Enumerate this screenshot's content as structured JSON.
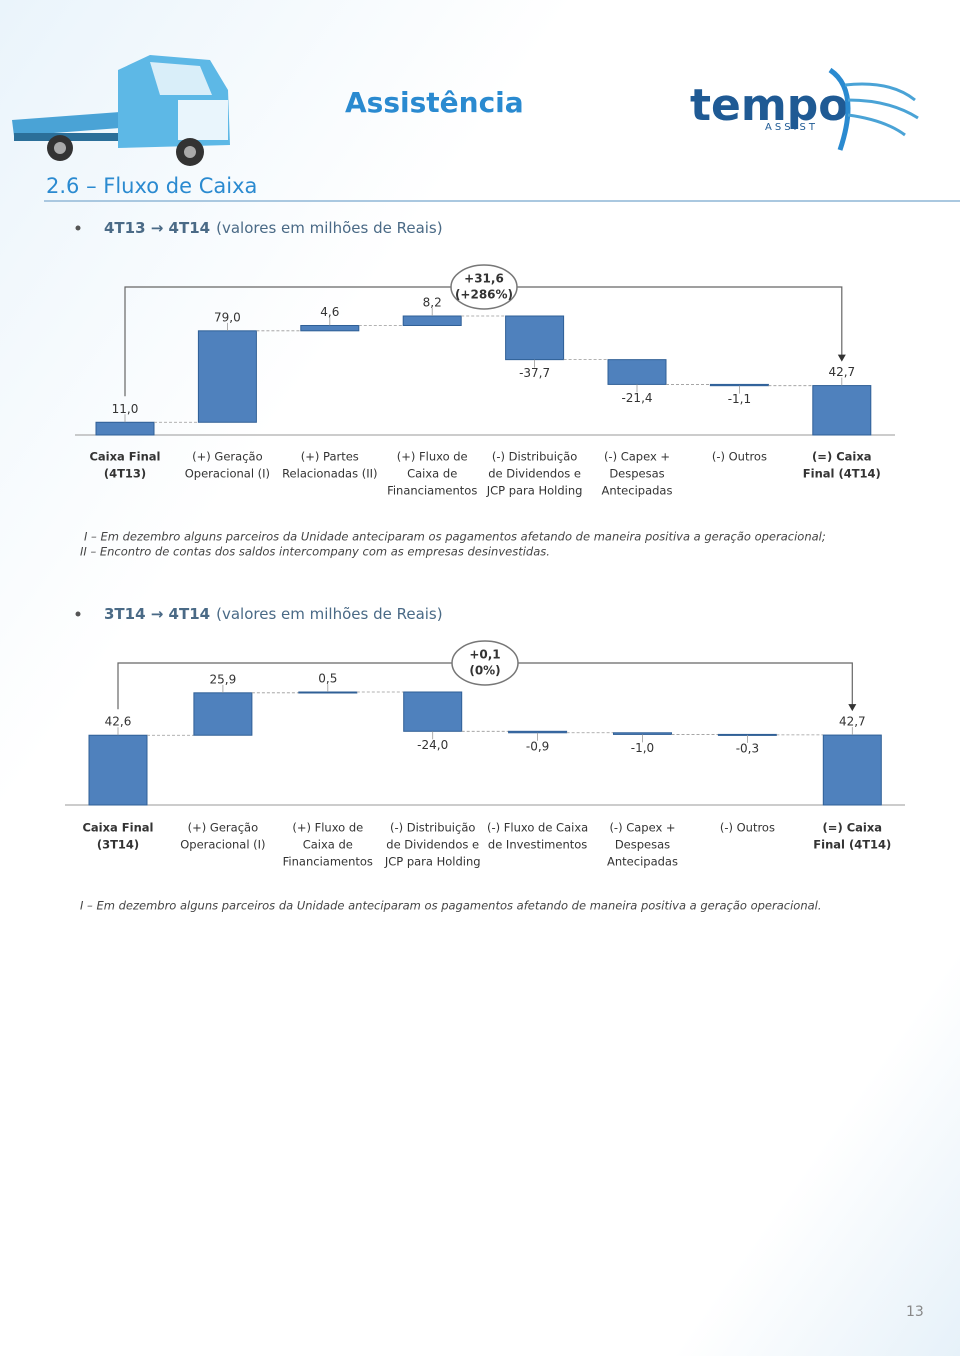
{
  "header": {
    "title": "Assistência",
    "logo": "tempo",
    "logo_sub": "ASSIST"
  },
  "section": {
    "title": "2.6 – Fluxo de Caixa"
  },
  "bullets": [
    {
      "bold": "4T13 → 4T14",
      "text": "(valores em milhões de Reais)"
    },
    {
      "bold": "3T14 → 4T14",
      "text": "(valores em milhões de Reais)"
    }
  ],
  "chart_data": [
    {
      "type": "waterfall",
      "color": "#4f81bd",
      "categories": [
        [
          "Caixa Final",
          "(4T13)"
        ],
        [
          "(+) Geração",
          "Operacional (I)"
        ],
        [
          "(+) Partes",
          "Relacionadas (II)"
        ],
        [
          "(+) Fluxo de",
          "Caixa de",
          "Financiamentos"
        ],
        [
          "(-) Distribuição",
          "de Dividendos e",
          "JCP para Holding"
        ],
        [
          "(-) Capex +",
          "Despesas",
          "Antecipadas"
        ],
        [
          "(-) Outros"
        ],
        [
          "(=) Caixa",
          "Final (4T14)"
        ]
      ],
      "values": [
        11.0,
        79.0,
        4.6,
        8.2,
        -37.7,
        -21.4,
        -1.1,
        42.7
      ],
      "value_labels": [
        "11,0",
        "79,0",
        "4,6",
        "8,2",
        "-37,7",
        "-21,4",
        "-1,1",
        "42,7"
      ],
      "annotation": [
        "+31,6",
        "(+286%)"
      ]
    },
    {
      "type": "waterfall",
      "color": "#4f81bd",
      "categories": [
        [
          "Caixa Final",
          "(3T14)"
        ],
        [
          "(+) Geração",
          "Operacional (I)"
        ],
        [
          "(+) Fluxo de",
          "Caixa de",
          "Financiamentos"
        ],
        [
          "(-) Distribuição",
          "de Dividendos e",
          "JCP para Holding"
        ],
        [
          "(-) Fluxo de Caixa",
          "de Investimentos"
        ],
        [
          "(-) Capex +",
          "Despesas",
          "Antecipadas"
        ],
        [
          "(-) Outros"
        ],
        [
          "(=) Caixa",
          "Final (4T14)"
        ]
      ],
      "values": [
        42.6,
        25.9,
        0.5,
        -24.0,
        -0.9,
        -1.0,
        -0.3,
        42.7
      ],
      "value_labels": [
        "42,6",
        "25,9",
        "0,5",
        "-24,0",
        "-0,9",
        "-1,0",
        "-0,3",
        "42,7"
      ],
      "annotation": [
        "+0,1",
        "(0%)"
      ]
    }
  ],
  "notes": [
    [
      "I – Em dezembro alguns parceiros da Unidade anteciparam os pagamentos afetando de maneira positiva a geração operacional;",
      "II – Encontro de contas dos saldos intercompany com as empresas desinvestidas."
    ],
    [
      "I – Em dezembro alguns parceiros da Unidade anteciparam os pagamentos afetando de maneira positiva a geração operacional."
    ]
  ],
  "page_number": "13"
}
